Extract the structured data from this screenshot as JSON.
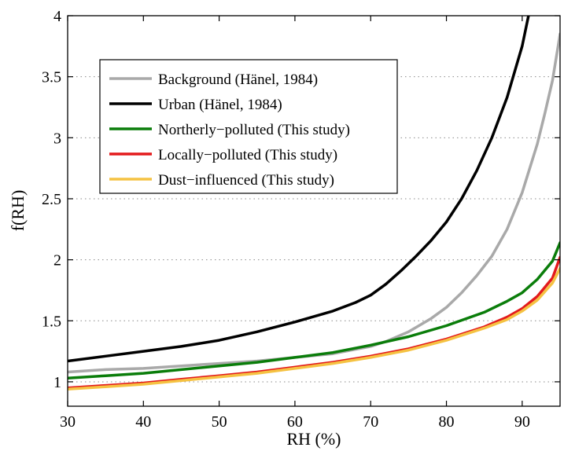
{
  "chart_data": {
    "type": "line",
    "xlabel": "RH (%)",
    "ylabel": "f(RH)",
    "xlim": [
      30,
      95
    ],
    "ylim": [
      0.8,
      4
    ],
    "xticks": [
      30,
      40,
      50,
      60,
      70,
      80,
      90
    ],
    "yticks": [
      1,
      1.5,
      2,
      2.5,
      3,
      3.5,
      4
    ],
    "grid": "horizontal dotted",
    "legend_position": "top-left",
    "series": [
      {
        "name": "Background (Hanel, 1984)",
        "color": "#a9a9a9",
        "points": [
          [
            30,
            1.08
          ],
          [
            35,
            1.1
          ],
          [
            40,
            1.11
          ],
          [
            45,
            1.13
          ],
          [
            50,
            1.15
          ],
          [
            55,
            1.17
          ],
          [
            60,
            1.2
          ],
          [
            65,
            1.23
          ],
          [
            70,
            1.29
          ],
          [
            72,
            1.33
          ],
          [
            75,
            1.41
          ],
          [
            78,
            1.52
          ],
          [
            80,
            1.61
          ],
          [
            82,
            1.73
          ],
          [
            84,
            1.87
          ],
          [
            86,
            2.03
          ],
          [
            88,
            2.25
          ],
          [
            90,
            2.55
          ],
          [
            92,
            2.95
          ],
          [
            93,
            3.2
          ],
          [
            94,
            3.47
          ],
          [
            95,
            3.85
          ]
        ]
      },
      {
        "name": "Urban (Hanel, 1984)",
        "color": "#000000",
        "points": [
          [
            30,
            1.17
          ],
          [
            35,
            1.21
          ],
          [
            40,
            1.25
          ],
          [
            45,
            1.29
          ],
          [
            50,
            1.34
          ],
          [
            55,
            1.41
          ],
          [
            60,
            1.49
          ],
          [
            65,
            1.58
          ],
          [
            68,
            1.65
          ],
          [
            70,
            1.71
          ],
          [
            72,
            1.8
          ],
          [
            74,
            1.91
          ],
          [
            76,
            2.03
          ],
          [
            78,
            2.16
          ],
          [
            80,
            2.31
          ],
          [
            82,
            2.5
          ],
          [
            84,
            2.73
          ],
          [
            86,
            3.0
          ],
          [
            88,
            3.33
          ],
          [
            90,
            3.75
          ],
          [
            91,
            4.05
          ]
        ]
      },
      {
        "name": "Northerly−polluted (This study)",
        "color": "#0a7d0a",
        "points": [
          [
            30,
            1.03
          ],
          [
            35,
            1.05
          ],
          [
            40,
            1.07
          ],
          [
            45,
            1.1
          ],
          [
            50,
            1.13
          ],
          [
            55,
            1.16
          ],
          [
            60,
            1.2
          ],
          [
            65,
            1.24
          ],
          [
            70,
            1.3
          ],
          [
            75,
            1.37
          ],
          [
            80,
            1.46
          ],
          [
            85,
            1.57
          ],
          [
            88,
            1.66
          ],
          [
            90,
            1.73
          ],
          [
            92,
            1.84
          ],
          [
            94,
            1.99
          ],
          [
            95,
            2.14
          ]
        ]
      },
      {
        "name": "Locally−polluted (This study)",
        "color": "#e31a1c",
        "points": [
          [
            30,
            0.95
          ],
          [
            35,
            0.97
          ],
          [
            40,
            0.99
          ],
          [
            45,
            1.02
          ],
          [
            50,
            1.05
          ],
          [
            55,
            1.08
          ],
          [
            60,
            1.12
          ],
          [
            65,
            1.16
          ],
          [
            70,
            1.21
          ],
          [
            75,
            1.27
          ],
          [
            80,
            1.35
          ],
          [
            85,
            1.45
          ],
          [
            88,
            1.53
          ],
          [
            90,
            1.6
          ],
          [
            92,
            1.7
          ],
          [
            94,
            1.85
          ],
          [
            95,
            2.02
          ]
        ]
      },
      {
        "name": "Dust−influenced (This study)",
        "color": "#f5c242",
        "points": [
          [
            30,
            0.94
          ],
          [
            35,
            0.96
          ],
          [
            40,
            0.98
          ],
          [
            45,
            1.01
          ],
          [
            50,
            1.04
          ],
          [
            55,
            1.07
          ],
          [
            60,
            1.11
          ],
          [
            65,
            1.15
          ],
          [
            70,
            1.2
          ],
          [
            75,
            1.26
          ],
          [
            80,
            1.34
          ],
          [
            85,
            1.44
          ],
          [
            88,
            1.51
          ],
          [
            90,
            1.58
          ],
          [
            92,
            1.67
          ],
          [
            94,
            1.81
          ],
          [
            95,
            1.93
          ]
        ]
      }
    ],
    "legend_display": [
      [
        "Background (Ha",
        "̈",
        "nel, 1984)"
      ],
      [
        "Urban (Ha",
        "̈",
        "nel, 1984)"
      ],
      [
        "Northerly−polluted (This study)",
        "",
        ""
      ],
      [
        "Locally−polluted (This study)",
        "",
        ""
      ],
      [
        "Dust−influenced (This study)",
        "",
        ""
      ]
    ]
  }
}
